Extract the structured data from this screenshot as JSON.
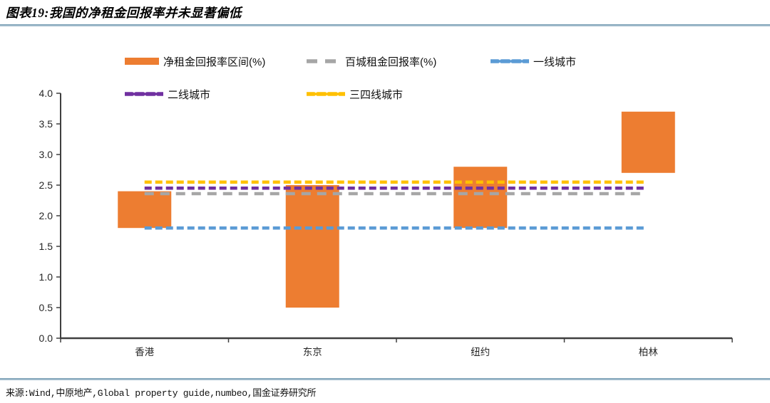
{
  "header": {
    "title": "图表19:我国的净租金回报率并未显著偏低"
  },
  "footer": {
    "source": "来源:Wind,中原地产,Global property guide,numbeo,国金证券研究所"
  },
  "colors": {
    "bar_orange": "#ED7D31",
    "gray_line": "#A6A6A6",
    "blue_line": "#5B9BD5",
    "purple_line": "#7030A0",
    "yellow_line": "#FFC000",
    "axis": "#3f3f3f",
    "rule_blue": "#9db9ca"
  },
  "legend": [
    {
      "name": "净租金回报率区间(%)",
      "marker": "bar",
      "color": "#ED7D31"
    },
    {
      "name": "百城租金回报率(%)",
      "marker": "dash-long",
      "color": "#A6A6A6"
    },
    {
      "name": "一线城市",
      "marker": "dash",
      "color": "#5B9BD5"
    },
    {
      "name": "二线城市",
      "marker": "dash",
      "color": "#7030A0"
    },
    {
      "name": "三四线城市",
      "marker": "dash",
      "color": "#FFC000"
    }
  ],
  "chart_data": {
    "type": "bar",
    "subtype": "floating-range-bars-with-reference-lines",
    "categories": [
      "香港",
      "东京",
      "纽约",
      "柏林"
    ],
    "series": [
      {
        "name": "净租金回报率区间(%)",
        "kind": "range_bar",
        "color": "#ED7D31",
        "ranges": [
          [
            1.8,
            2.4
          ],
          [
            0.5,
            2.5
          ],
          [
            1.8,
            2.8
          ],
          [
            2.7,
            3.7
          ]
        ]
      },
      {
        "name": "百城租金回报率(%)",
        "kind": "hline",
        "dash_style": "long",
        "color": "#A6A6A6",
        "value": 2.36
      },
      {
        "name": "一线城市",
        "kind": "hline",
        "dash_style": "short",
        "color": "#5B9BD5",
        "value": 1.8
      },
      {
        "name": "二线城市",
        "kind": "hline",
        "dash_style": "short",
        "color": "#7030A0",
        "value": 2.45
      },
      {
        "name": "三四线城市",
        "kind": "hline",
        "dash_style": "short",
        "color": "#FFC000",
        "value": 2.55
      }
    ],
    "ylim": [
      0.0,
      4.0
    ],
    "yticks": [
      "0.0",
      "0.5",
      "1.0",
      "1.5",
      "2.0",
      "2.5",
      "3.0",
      "3.5",
      "4.0"
    ],
    "xlabel": "",
    "ylabel": "",
    "grid": false,
    "legend_position": "top"
  }
}
